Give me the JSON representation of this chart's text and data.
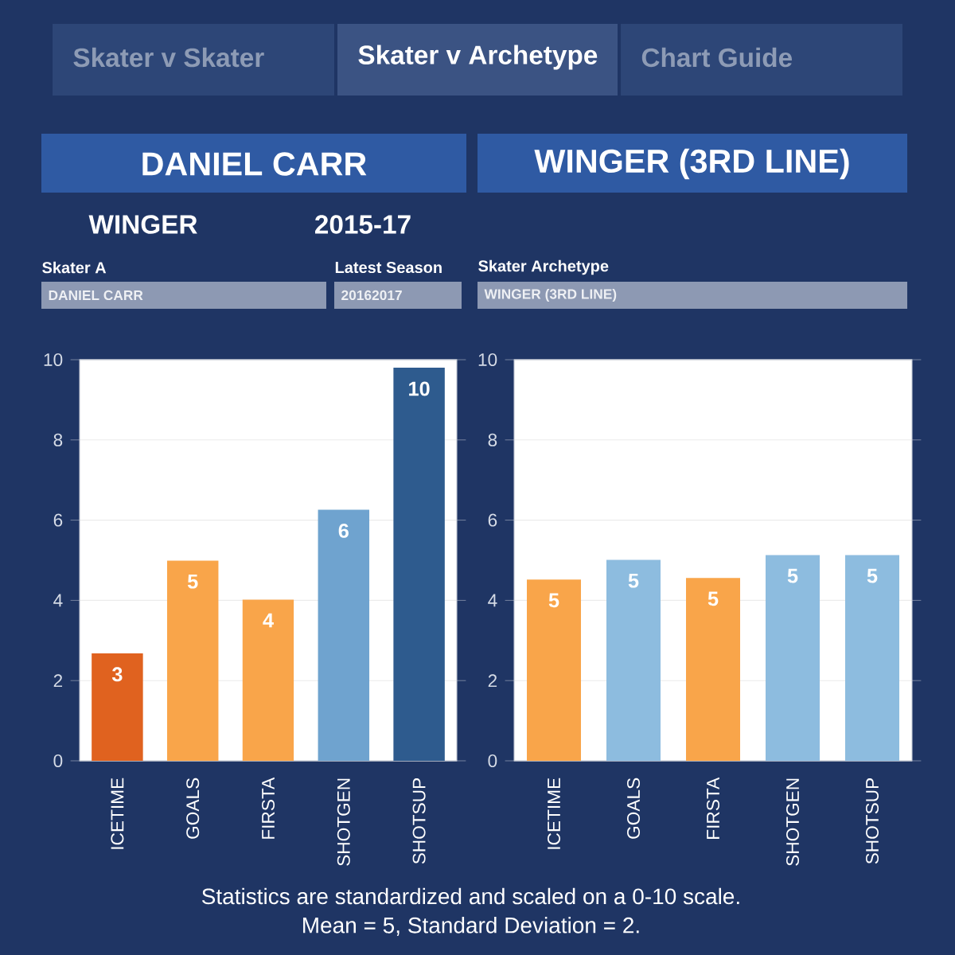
{
  "chart_data": [
    {
      "type": "bar",
      "title": "DANIEL CARR",
      "subtitle": "WINGER",
      "categories": [
        "ICETIME",
        "GOALS",
        "FIRSTA",
        "SHOTGEN",
        "SHOTSUP"
      ],
      "values": [
        2.68,
        4.99,
        4.02,
        6.26,
        9.8
      ],
      "value_labels": [
        "3",
        "5",
        "4",
        "6",
        "10"
      ],
      "colors": [
        "#e0621f",
        "#f9a54a",
        "#f9a54a",
        "#6fa3cf",
        "#2e5b8e"
      ],
      "ylim": [
        0,
        10
      ],
      "yticks": [
        0,
        2,
        4,
        6,
        8,
        10
      ],
      "grid": "y",
      "annotations": [
        "Skater v Skater",
        "Skater v Archetype",
        "Chart Guide",
        "2015-17",
        "Skater A",
        "DANIEL CARR",
        "Latest Season",
        "20162017",
        "Statistics are standardized and scaled on a 0-10 scale.",
        "Mean = 5, Standard Deviation = 2."
      ]
    },
    {
      "type": "bar",
      "title": "WINGER (3RD LINE)",
      "categories": [
        "ICETIME",
        "GOALS",
        "FIRSTA",
        "SHOTGEN",
        "SHOTSUP"
      ],
      "values": [
        4.52,
        5.01,
        4.56,
        5.13,
        5.13
      ],
      "value_labels": [
        "5",
        "5",
        "5",
        "5",
        "5"
      ],
      "colors": [
        "#f9a54a",
        "#8dbcdf",
        "#f9a54a",
        "#8dbcdf",
        "#8dbcdf"
      ],
      "ylim": [
        0,
        10
      ],
      "yticks": [
        0,
        2,
        4,
        6,
        8,
        10
      ],
      "grid": "y",
      "annotations": [
        "Skater Archetype",
        "WINGER (3RD LINE)"
      ]
    }
  ]
}
